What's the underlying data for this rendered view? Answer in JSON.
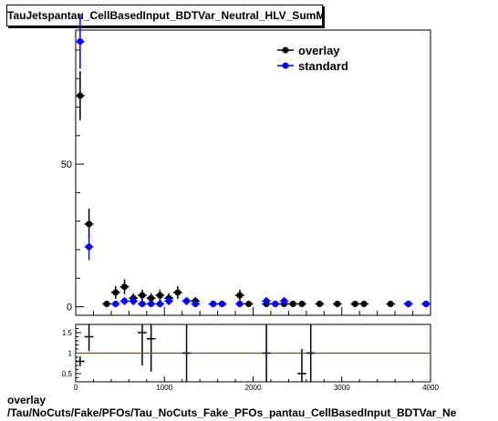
{
  "title": "TauJetspantau_CellBasedInput_BDTVar_Neutral_HLV_SumM",
  "footer": {
    "line1": "overlay",
    "line2": "/Tau/NoCuts/Fake/PFOs/Tau_NoCuts_Fake_PFOs_pantau_CellBasedInput_BDTVar_Ne"
  },
  "colors": {
    "overlay": "#000000",
    "standard": "#0000ff",
    "ratio_line": "#cc0000"
  },
  "chart_data": [
    {
      "type": "scatter",
      "title": "TauJetspantau_CellBasedInput_BDTVar_Neutral_HLV_SumM",
      "xlim": [
        0,
        4000
      ],
      "ylim": [
        -3,
        97
      ],
      "grid": false,
      "legend_position": "top-right",
      "y_ticks": [
        0,
        50
      ],
      "x_ticks": [
        0,
        1000,
        2000,
        3000,
        4000
      ],
      "series": [
        {
          "name": "overlay",
          "color": "#000000",
          "x": [
            50,
            150,
            350,
            450,
            550,
            650,
            750,
            850,
            950,
            1050,
            1150,
            1250,
            1350,
            1550,
            1650,
            1850,
            1950,
            2150,
            2250,
            2350,
            2450,
            2550,
            2750,
            2950,
            3150,
            3250,
            3550,
            3750,
            3950
          ],
          "y": [
            74,
            29,
            1,
            5,
            7,
            3,
            4,
            3,
            4,
            3,
            5,
            2,
            2,
            1,
            1,
            4,
            1,
            1,
            1,
            1,
            1,
            1,
            1,
            1,
            1,
            1,
            1,
            1,
            1
          ],
          "yerr": [
            8.6,
            5.4,
            1,
            2.2,
            2.6,
            1.7,
            2,
            1.7,
            2,
            1.7,
            2.2,
            1.4,
            1.4,
            1,
            1,
            2,
            1,
            1,
            1,
            1,
            1,
            1,
            1,
            1,
            1,
            1,
            1,
            1,
            1
          ]
        },
        {
          "name": "standard",
          "color": "#0000ff",
          "x": [
            50,
            150,
            350,
            450,
            550,
            650,
            750,
            850,
            950,
            1050,
            1150,
            1250,
            1350,
            1550,
            1650,
            1850,
            1950,
            2150,
            2250,
            2350,
            2450,
            2550,
            2750,
            2950,
            3150,
            3250,
            3550,
            3750,
            3950
          ],
          "y": [
            93,
            21,
            0,
            1,
            2,
            2,
            1,
            1,
            1,
            2,
            0,
            2,
            1,
            1,
            1,
            1,
            0,
            2,
            1,
            2,
            0,
            0,
            0,
            0,
            0,
            0,
            0,
            1,
            1
          ],
          "yerr": [
            9.6,
            4.6,
            0,
            1,
            1.4,
            1.4,
            1,
            1,
            1,
            1.4,
            0,
            1.4,
            1,
            1,
            1,
            1,
            0,
            1.4,
            1,
            1.4,
            0,
            0,
            0,
            0,
            0,
            0,
            0,
            1,
            1
          ]
        }
      ]
    },
    {
      "type": "scatter",
      "title": "",
      "xlim": [
        0,
        4000
      ],
      "ylim": [
        0.3,
        1.7
      ],
      "y_ticks": [
        0.5,
        1,
        1.5
      ],
      "x_ticks": [
        0,
        1000,
        2000,
        3000,
        4000
      ],
      "reference_line": 1,
      "series": [
        {
          "name": "",
          "color": "#000000",
          "x": [
            50,
            150,
            750,
            850,
            1250,
            2150,
            2550,
            2650
          ],
          "y": [
            0.8,
            1.4,
            1.5,
            1.35,
            1.0,
            1.0,
            0.5,
            1.0
          ],
          "xerr": [
            50,
            50,
            50,
            50,
            50,
            50,
            50,
            50
          ],
          "yerr": [
            0.12,
            0.35,
            0.8,
            0.8,
            1.2,
            1.2,
            0.6,
            1.2
          ]
        }
      ]
    }
  ]
}
